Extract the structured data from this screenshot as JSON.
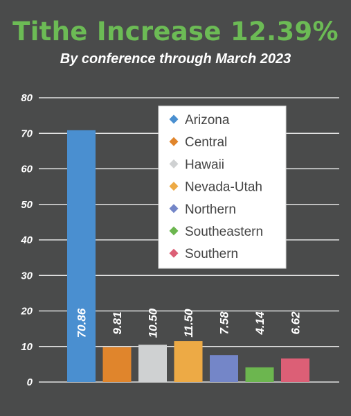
{
  "title": "Tithe Increase 12.39%",
  "subtitle": "By conference through March 2023",
  "chart_data": {
    "type": "bar",
    "categories": [
      "Arizona",
      "Central",
      "Hawaii",
      "Nevada-Utah",
      "Northern",
      "Southeastern",
      "Southern"
    ],
    "values": [
      70.86,
      9.81,
      10.5,
      11.5,
      7.58,
      4.14,
      6.62
    ],
    "data_labels": [
      "70.86",
      "9.81",
      "10.50",
      "11.50",
      "7.58",
      "4.14",
      "6.62"
    ],
    "colors": [
      "#4a8fd0",
      "#e0852c",
      "#cfd1d2",
      "#edaa45",
      "#7486c8",
      "#6cb64f",
      "#dc5f76"
    ],
    "yticks": [
      "0",
      "10",
      "20",
      "30",
      "40",
      "50",
      "60",
      "70",
      "80"
    ],
    "ylim": [
      0,
      80
    ],
    "grid": true,
    "legend": "inside-top-right",
    "background": "#4a4b4b",
    "title_color": "#6cbb55"
  }
}
